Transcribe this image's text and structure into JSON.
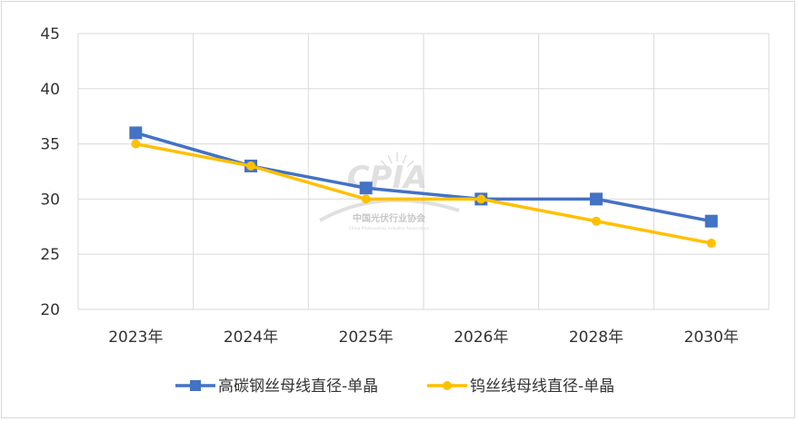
{
  "chart_data": {
    "type": "line",
    "categories": [
      "2023年",
      "2024年",
      "2025年",
      "2026年",
      "2028年",
      "2030年"
    ],
    "ylim": [
      20,
      45
    ],
    "yticks": [
      20,
      25,
      30,
      35,
      40,
      45
    ],
    "grid": true,
    "legend_position": "bottom",
    "series": [
      {
        "name": "高碳钢丝母线直径-单晶",
        "values": [
          36,
          33,
          31,
          30,
          30,
          28
        ],
        "color": "#4472c4",
        "marker": "square"
      },
      {
        "name": "钨丝线母线直径-单晶",
        "values": [
          35,
          33,
          30,
          30,
          28,
          26
        ],
        "color": "#ffc000",
        "marker": "circle"
      }
    ]
  },
  "watermark": {
    "logo_text": "CPIA",
    "name_cn": "中国光伏行业协会",
    "name_en": "China Photovoltaic Industry Association"
  }
}
